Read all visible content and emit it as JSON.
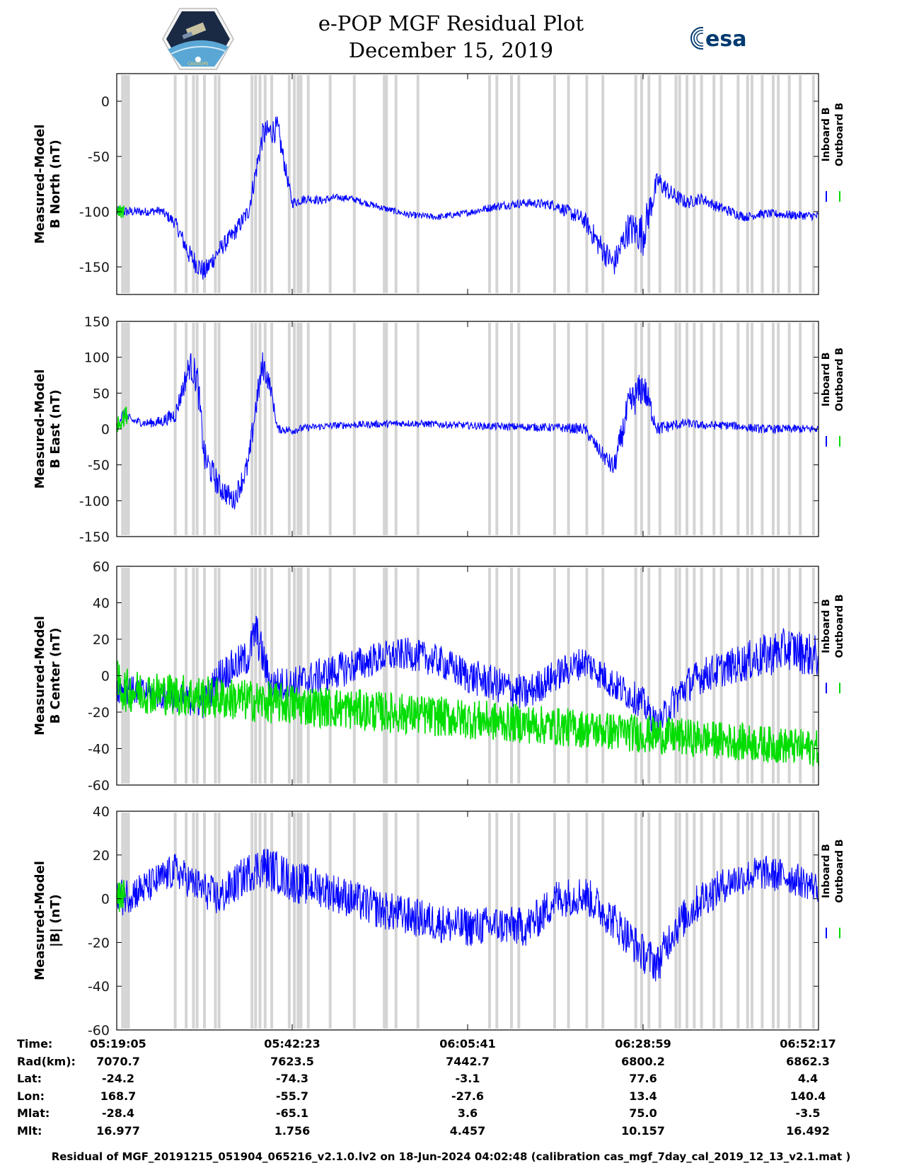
{
  "header": {
    "title": "e-POP MGF Residual Plot",
    "date": "December 15, 2019",
    "left_logo": "CASSIOPE",
    "right_logo": "esa"
  },
  "colors": {
    "inboard": "#0000ff",
    "outboard": "#00dd00",
    "gap_bars": "#d4d4d4",
    "axis": "#000000"
  },
  "chart_data": [
    {
      "type": "line",
      "ylabel": [
        "Measured-Model",
        "B North (nT)"
      ],
      "ylim": [
        -175,
        25
      ],
      "yticks": [
        0,
        -50,
        -100,
        -150
      ],
      "legend": [
        "Inboard B",
        "Outboard B"
      ],
      "legend_placement": "right",
      "grid": false,
      "series": [
        {
          "name": "Inboard B",
          "min_ut": [
            0,
            4,
            6,
            8,
            10,
            12,
            14,
            16,
            18,
            20,
            22,
            24,
            26,
            28,
            30,
            32,
            36,
            40,
            44,
            48,
            52,
            56,
            60,
            64,
            66,
            68,
            70,
            72,
            74,
            76,
            78,
            80,
            82,
            84,
            86,
            88,
            90,
            92,
            96
          ],
          "center": [
            -100,
            -100,
            -99,
            -110,
            -140,
            -155,
            -135,
            -120,
            -100,
            -30,
            -25,
            -92,
            -88,
            -90,
            -87,
            -88,
            -96,
            -103,
            -105,
            -101,
            -95,
            -92,
            -94,
            -108,
            -130,
            -148,
            -115,
            -120,
            -72,
            -85,
            -92,
            -88,
            -95,
            -100,
            -105,
            -102,
            -102,
            -103,
            -104
          ],
          "noise": [
            5,
            4,
            4,
            6,
            10,
            10,
            8,
            8,
            8,
            12,
            12,
            5,
            4,
            4,
            3,
            3,
            3,
            3,
            3,
            3,
            4,
            4,
            5,
            8,
            12,
            12,
            15,
            20,
            10,
            8,
            6,
            5,
            5,
            5,
            4,
            4,
            4,
            4,
            4
          ]
        },
        {
          "name": "Outboard B",
          "min_ut": [
            0,
            1
          ],
          "center": [
            -100,
            -100
          ],
          "noise": [
            6,
            6
          ]
        }
      ]
    },
    {
      "type": "line",
      "ylabel": [
        "Measured-Model",
        "B East (nT)"
      ],
      "ylim": [
        -150,
        150
      ],
      "yticks": [
        150,
        100,
        50,
        0,
        -50,
        -100,
        -150
      ],
      "legend": [
        "Inboard B",
        "Outboard B"
      ],
      "legend_placement": "right",
      "grid": false,
      "series": [
        {
          "name": "Inboard B",
          "min_ut": [
            0,
            0.5,
            1,
            2,
            4,
            6,
            8,
            10,
            11,
            12,
            14,
            16,
            18,
            19,
            20,
            21,
            22,
            24,
            26,
            30,
            40,
            50,
            60,
            64,
            66,
            68,
            70,
            72,
            74,
            76,
            78,
            80,
            84,
            88,
            92,
            96
          ],
          "center": [
            0,
            15,
            20,
            12,
            8,
            10,
            20,
            90,
            70,
            -40,
            -80,
            -100,
            -50,
            30,
            90,
            60,
            0,
            -2,
            2,
            5,
            8,
            4,
            2,
            0,
            -30,
            -55,
            30,
            60,
            0,
            5,
            8,
            5,
            5,
            0,
            0,
            0
          ],
          "noise": [
            6,
            8,
            10,
            6,
            6,
            8,
            12,
            20,
            25,
            22,
            18,
            15,
            18,
            20,
            22,
            12,
            6,
            6,
            5,
            5,
            5,
            5,
            6,
            8,
            10,
            15,
            25,
            25,
            10,
            8,
            6,
            6,
            6,
            6,
            6,
            6
          ]
        },
        {
          "name": "Outboard B",
          "min_ut": [
            0,
            1.5
          ],
          "center": [
            5,
            22
          ],
          "noise": [
            10,
            14
          ]
        }
      ]
    },
    {
      "type": "line",
      "ylabel": [
        "Measured-Model",
        "B Center (nT)"
      ],
      "ylim": [
        -60,
        60
      ],
      "yticks": [
        60,
        40,
        20,
        0,
        -20,
        -40,
        -60
      ],
      "legend": [
        "Inboard B",
        "Outboard B"
      ],
      "legend_placement": "right",
      "grid": false,
      "series": [
        {
          "name": "Inboard B",
          "min_ut": [
            0,
            2,
            5,
            8,
            12,
            14,
            18,
            19,
            21,
            24,
            28,
            32,
            36,
            40,
            44,
            48,
            52,
            56,
            60,
            64,
            68,
            72,
            74,
            76,
            78,
            80,
            84,
            88,
            92,
            96
          ],
          "center": [
            -5,
            -8,
            -10,
            -12,
            -15,
            0,
            10,
            25,
            -5,
            -5,
            0,
            5,
            10,
            12,
            8,
            0,
            -5,
            -10,
            0,
            8,
            -5,
            -15,
            -28,
            -15,
            -5,
            0,
            5,
            10,
            15,
            10
          ],
          "noise": [
            10,
            8,
            8,
            8,
            9,
            10,
            10,
            12,
            10,
            10,
            10,
            10,
            9,
            9,
            9,
            10,
            10,
            10,
            9,
            9,
            9,
            9,
            8,
            10,
            10,
            10,
            10,
            12,
            12,
            12
          ]
        },
        {
          "name": "Outboard B",
          "min_ut": [
            0,
            1.2,
            96
          ],
          "center": [
            -5,
            -8,
            -40
          ],
          "noise": [
            14,
            12,
            10
          ]
        }
      ]
    },
    {
      "type": "line",
      "ylabel": [
        "Measured-Model",
        "|B| (nT)"
      ],
      "ylim": [
        -60,
        40
      ],
      "yticks": [
        40,
        20,
        0,
        -20,
        -40,
        -60
      ],
      "legend": [
        "Inboard B",
        "Outboard B"
      ],
      "legend_placement": "right",
      "grid": false,
      "series": [
        {
          "name": "Inboard B",
          "min_ut": [
            0,
            4,
            8,
            10,
            14,
            18,
            20,
            22,
            24,
            28,
            32,
            36,
            40,
            44,
            48,
            52,
            56,
            58,
            60,
            64,
            68,
            72,
            74,
            76,
            80,
            84,
            88,
            92,
            96
          ],
          "center": [
            0,
            5,
            13,
            8,
            0,
            12,
            15,
            12,
            8,
            5,
            0,
            -5,
            -8,
            -11,
            -13,
            -12,
            -13,
            -8,
            0,
            2,
            -10,
            -25,
            -30,
            -15,
            0,
            8,
            12,
            10,
            5
          ],
          "noise": [
            9,
            8,
            8,
            8,
            9,
            9,
            10,
            10,
            10,
            9,
            9,
            9,
            9,
            9,
            9,
            9,
            9,
            9,
            9,
            9,
            9,
            9,
            9,
            9,
            9,
            8,
            8,
            8,
            7
          ]
        },
        {
          "name": "Outboard B",
          "min_ut": [
            0,
            1.2
          ],
          "center": [
            0,
            2
          ],
          "noise": [
            7,
            7
          ]
        }
      ]
    }
  ],
  "x_axis": {
    "tick_labels": [
      "05:19:05",
      "05:42:23",
      "06:05:41",
      "06:28:59",
      "06:52:17"
    ],
    "span_minutes": 96
  },
  "info_table": {
    "labels": [
      "Time:",
      "Rad(km):",
      "Lat:",
      "Lon:",
      "Mlat:",
      "Mlt:"
    ],
    "columns": [
      [
        "05:19:05",
        "7070.7",
        "-24.2",
        "168.7",
        "-28.4",
        "16.977"
      ],
      [
        "05:42:23",
        "7623.5",
        "-74.3",
        "-55.7",
        "-65.1",
        "1.756"
      ],
      [
        "06:05:41",
        "7442.7",
        "-3.1",
        "-27.6",
        "3.6",
        "4.457"
      ],
      [
        "06:28:59",
        "6800.2",
        "77.6",
        "13.4",
        "75.0",
        "10.157"
      ],
      [
        "06:52:17",
        "6862.3",
        "4.4",
        "140.4",
        "-3.5",
        "16.492"
      ]
    ]
  },
  "footer": "Residual of MGF_20191215_051904_065216_v2.1.0.lv2 on 18-Jun-2024 04:02:48 (calibration cas_mgf_7day_cal_2019_12_13_v2.1.mat )",
  "gap_bars_min_ut": [
    0.8,
    1.2,
    1.6,
    8,
    9.5,
    10.5,
    11,
    12,
    13.5,
    14,
    18.5,
    19,
    19.6,
    20.3,
    21.2,
    23.6,
    24.3,
    24.8,
    25.2,
    26.2,
    29.2,
    32.5,
    36.6,
    36.9,
    38.2,
    41.2,
    51,
    52,
    54,
    55,
    59.9,
    61.8,
    64.3,
    66.5,
    71,
    71.8,
    72.8,
    74.3,
    76.5,
    77,
    78,
    79,
    80,
    81.7,
    82.7,
    85,
    86.3,
    86.9,
    88.3,
    89.8,
    90.5,
    92,
    93.5,
    95.3
  ]
}
